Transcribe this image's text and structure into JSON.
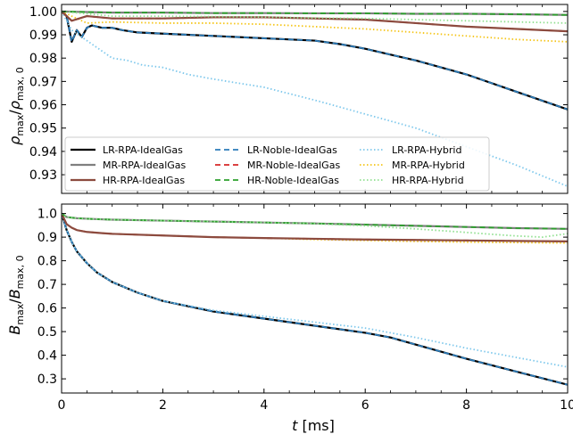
{
  "chart_data": {
    "type": "line",
    "x_label": "t [ms]",
    "x_range": [
      0,
      10
    ],
    "x_ticks": [
      "0",
      "2",
      "4",
      "6",
      "8",
      "10"
    ],
    "legend": [
      {
        "name": "LR-RPA-IdealGas",
        "color": "#000000",
        "dash": "solid"
      },
      {
        "name": "MR-RPA-IdealGas",
        "color": "#7f7f7f",
        "dash": "solid"
      },
      {
        "name": "HR-RPA-IdealGas",
        "color": "#8c4a3e",
        "dash": "solid"
      },
      {
        "name": "LR-Noble-IdealGas",
        "color": "#2b7bb9",
        "dash": "dashed"
      },
      {
        "name": "MR-Noble-IdealGas",
        "color": "#d62728",
        "dash": "dashed"
      },
      {
        "name": "HR-Noble-IdealGas",
        "color": "#2ca02c",
        "dash": "dashed"
      },
      {
        "name": "LR-RPA-Hybrid",
        "color": "#7ec8ec",
        "dash": "dotted"
      },
      {
        "name": "MR-RPA-Hybrid",
        "color": "#f5c518",
        "dash": "dotted"
      },
      {
        "name": "HR-RPA-Hybrid",
        "color": "#90e090",
        "dash": "dotted"
      }
    ],
    "panels": [
      {
        "id": "rho",
        "y_label": "ρ_max / ρ_max,0",
        "y_range": [
          0.922,
          1.003
        ],
        "y_ticks": [
          1.0,
          0.99,
          0.98,
          0.97,
          0.96,
          0.95,
          0.94,
          0.93
        ],
        "y_tick_labels": [
          "1.00",
          "0.99",
          "0.98",
          "0.97",
          "0.96",
          "0.95",
          "0.94",
          "0.93"
        ],
        "series": [
          {
            "name": "LR-RPA-IdealGas",
            "x": [
              0,
              0.1,
              0.2,
              0.3,
              0.4,
              0.5,
              0.6,
              0.8,
              1.0,
              1.2,
              1.5,
              2.0,
              3.0,
              4.0,
              5.0,
              5.5,
              6.0,
              6.5,
              7.0,
              8.0,
              9.0,
              10.0
            ],
            "y": [
              1.0,
              0.998,
              0.987,
              0.992,
              0.989,
              0.993,
              0.994,
              0.993,
              0.993,
              0.992,
              0.991,
              0.9905,
              0.9895,
              0.9885,
              0.9875,
              0.986,
              0.984,
              0.9815,
              0.979,
              0.973,
              0.9655,
              0.958
            ]
          },
          {
            "name": "LR-Noble-IdealGas",
            "x": [
              0,
              0.1,
              0.2,
              0.3,
              0.4,
              0.5,
              0.6,
              0.8,
              1.0,
              1.2,
              1.5,
              2.0,
              3.0,
              4.0,
              5.0,
              5.5,
              6.0,
              6.5,
              7.0,
              8.0,
              9.0,
              10.0
            ],
            "y": [
              1.0,
              0.998,
              0.987,
              0.992,
              0.989,
              0.993,
              0.994,
              0.993,
              0.993,
              0.992,
              0.991,
              0.9905,
              0.9895,
              0.9885,
              0.9875,
              0.986,
              0.984,
              0.9815,
              0.979,
              0.973,
              0.9655,
              0.958
            ]
          },
          {
            "name": "LR-RPA-Hybrid",
            "x": [
              0,
              0.2,
              0.4,
              0.6,
              0.8,
              1.0,
              1.3,
              1.6,
              2.0,
              2.5,
              3.0,
              4.0,
              5.0,
              6.0,
              7.0,
              8.0,
              9.0,
              10.0
            ],
            "y": [
              1.0,
              0.992,
              0.989,
              0.986,
              0.983,
              0.98,
              0.979,
              0.977,
              0.976,
              0.973,
              0.971,
              0.9675,
              0.962,
              0.956,
              0.95,
              0.942,
              0.934,
              0.925
            ]
          },
          {
            "name": "MR-RPA-IdealGas",
            "x": [
              0,
              1,
              2,
              3,
              4,
              5,
              6,
              7,
              8,
              9,
              10
            ],
            "y": [
              1.0,
              0.9995,
              0.9995,
              0.9993,
              0.9993,
              0.9992,
              0.9992,
              0.999,
              0.999,
              0.9988,
              0.9985
            ]
          },
          {
            "name": "MR-Noble-IdealGas",
            "x": [
              0,
              0.2,
              0.5,
              1,
              2,
              3,
              4,
              5,
              6,
              7,
              8,
              9,
              10
            ],
            "y": [
              1.0,
              0.996,
              0.998,
              0.997,
              0.997,
              0.9975,
              0.9975,
              0.997,
              0.9965,
              0.995,
              0.9935,
              0.9925,
              0.9915
            ]
          },
          {
            "name": "MR-RPA-Hybrid",
            "x": [
              0,
              0.5,
              1,
              2,
              3,
              4,
              5,
              6,
              7,
              8,
              9,
              10
            ],
            "y": [
              1.0,
              0.995,
              0.9955,
              0.995,
              0.995,
              0.9945,
              0.9935,
              0.9925,
              0.991,
              0.9895,
              0.988,
              0.987
            ]
          },
          {
            "name": "HR-RPA-IdealGas",
            "x": [
              0,
              0.2,
              0.5,
              1,
              2,
              3,
              4,
              5,
              6,
              7,
              8,
              9,
              10
            ],
            "y": [
              1.0,
              0.996,
              0.998,
              0.997,
              0.997,
              0.9975,
              0.9975,
              0.997,
              0.9965,
              0.995,
              0.9935,
              0.9925,
              0.9915
            ]
          },
          {
            "name": "HR-Noble-IdealGas",
            "x": [
              0,
              1,
              2,
              3,
              4,
              5,
              6,
              7,
              8,
              9,
              10
            ],
            "y": [
              1.0,
              0.9995,
              0.9995,
              0.9993,
              0.9993,
              0.9992,
              0.9992,
              0.999,
              0.999,
              0.9988,
              0.9985
            ]
          },
          {
            "name": "HR-RPA-Hybrid",
            "x": [
              0,
              1,
              2,
              3,
              4,
              5,
              6,
              7,
              8,
              9,
              10
            ],
            "y": [
              1.0,
              0.998,
              0.998,
              0.9978,
              0.9976,
              0.9972,
              0.997,
              0.9965,
              0.996,
              0.9955,
              0.995
            ]
          }
        ]
      },
      {
        "id": "B",
        "y_label": "B_max / B_max,0",
        "y_range": [
          0.24,
          1.04
        ],
        "y_ticks": [
          1.0,
          0.9,
          0.8,
          0.7,
          0.6,
          0.5,
          0.4,
          0.3
        ],
        "y_tick_labels": [
          "1.0",
          "0.9",
          "0.8",
          "0.7",
          "0.6",
          "0.5",
          "0.4",
          "0.3"
        ],
        "series": [
          {
            "name": "LR-RPA-IdealGas",
            "x": [
              0,
              0.1,
              0.2,
              0.3,
              0.5,
              0.7,
              1.0,
              1.5,
              2,
              3,
              4,
              5,
              6,
              6.5,
              7,
              8,
              9,
              10
            ],
            "y": [
              1.0,
              0.93,
              0.88,
              0.84,
              0.79,
              0.75,
              0.71,
              0.665,
              0.63,
              0.585,
              0.555,
              0.525,
              0.495,
              0.475,
              0.445,
              0.385,
              0.33,
              0.275
            ]
          },
          {
            "name": "LR-Noble-IdealGas",
            "x": [
              0,
              0.1,
              0.2,
              0.3,
              0.5,
              0.7,
              1.0,
              1.5,
              2,
              3,
              4,
              5,
              6,
              6.5,
              7,
              8,
              9,
              10
            ],
            "y": [
              1.0,
              0.93,
              0.88,
              0.84,
              0.79,
              0.75,
              0.71,
              0.665,
              0.63,
              0.585,
              0.555,
              0.525,
              0.495,
              0.475,
              0.445,
              0.385,
              0.33,
              0.275
            ]
          },
          {
            "name": "LR-RPA-Hybrid",
            "x": [
              0,
              0.1,
              0.2,
              0.3,
              0.5,
              0.7,
              1.0,
              1.5,
              2,
              3,
              4,
              5,
              6,
              7,
              8,
              9,
              10
            ],
            "y": [
              1.0,
              0.93,
              0.88,
              0.84,
              0.79,
              0.75,
              0.71,
              0.665,
              0.63,
              0.59,
              0.565,
              0.54,
              0.515,
              0.475,
              0.43,
              0.39,
              0.35
            ]
          },
          {
            "name": "MR-RPA-IdealGas",
            "x": [
              0,
              0.1,
              0.3,
              0.6,
              1,
              2,
              3,
              4,
              5,
              6,
              7,
              8,
              9,
              10
            ],
            "y": [
              1.0,
              0.985,
              0.98,
              0.977,
              0.974,
              0.97,
              0.966,
              0.962,
              0.958,
              0.953,
              0.948,
              0.943,
              0.938,
              0.935
            ]
          },
          {
            "name": "MR-Noble-IdealGas",
            "x": [
              0,
              0.1,
              0.2,
              0.3,
              0.5,
              0.8,
              1,
              2,
              3,
              4,
              5,
              6,
              7,
              8,
              9,
              10
            ],
            "y": [
              1.0,
              0.955,
              0.94,
              0.93,
              0.922,
              0.917,
              0.914,
              0.907,
              0.9,
              0.896,
              0.893,
              0.89,
              0.888,
              0.886,
              0.884,
              0.882
            ]
          },
          {
            "name": "MR-RPA-Hybrid",
            "x": [
              0,
              0.1,
              0.2,
              0.3,
              0.5,
              0.8,
              1,
              2,
              3,
              4,
              5,
              6,
              7,
              8,
              9,
              10
            ],
            "y": [
              1.0,
              0.955,
              0.94,
              0.93,
              0.922,
              0.917,
              0.914,
              0.907,
              0.9,
              0.896,
              0.89,
              0.886,
              0.882,
              0.879,
              0.877,
              0.875
            ]
          },
          {
            "name": "HR-RPA-IdealGas",
            "x": [
              0,
              0.1,
              0.2,
              0.3,
              0.5,
              0.8,
              1,
              2,
              3,
              4,
              5,
              6,
              7,
              8,
              9,
              10
            ],
            "y": [
              1.0,
              0.955,
              0.94,
              0.93,
              0.922,
              0.917,
              0.914,
              0.907,
              0.9,
              0.896,
              0.893,
              0.89,
              0.888,
              0.886,
              0.884,
              0.882
            ]
          },
          {
            "name": "HR-Noble-IdealGas",
            "x": [
              0,
              0.1,
              0.3,
              0.6,
              1,
              2,
              3,
              4,
              5,
              6,
              7,
              8,
              9,
              10
            ],
            "y": [
              1.0,
              0.985,
              0.98,
              0.977,
              0.974,
              0.97,
              0.966,
              0.962,
              0.958,
              0.953,
              0.948,
              0.943,
              0.938,
              0.935
            ]
          },
          {
            "name": "HR-RPA-Hybrid",
            "x": [
              0,
              0.1,
              0.3,
              0.6,
              1,
              2,
              3,
              4,
              5,
              6,
              7,
              8,
              8.5,
              9,
              9.5,
              10
            ],
            "y": [
              1.0,
              0.985,
              0.98,
              0.977,
              0.974,
              0.97,
              0.966,
              0.962,
              0.957,
              0.948,
              0.935,
              0.92,
              0.912,
              0.905,
              0.9,
              0.915
            ]
          }
        ]
      }
    ]
  }
}
